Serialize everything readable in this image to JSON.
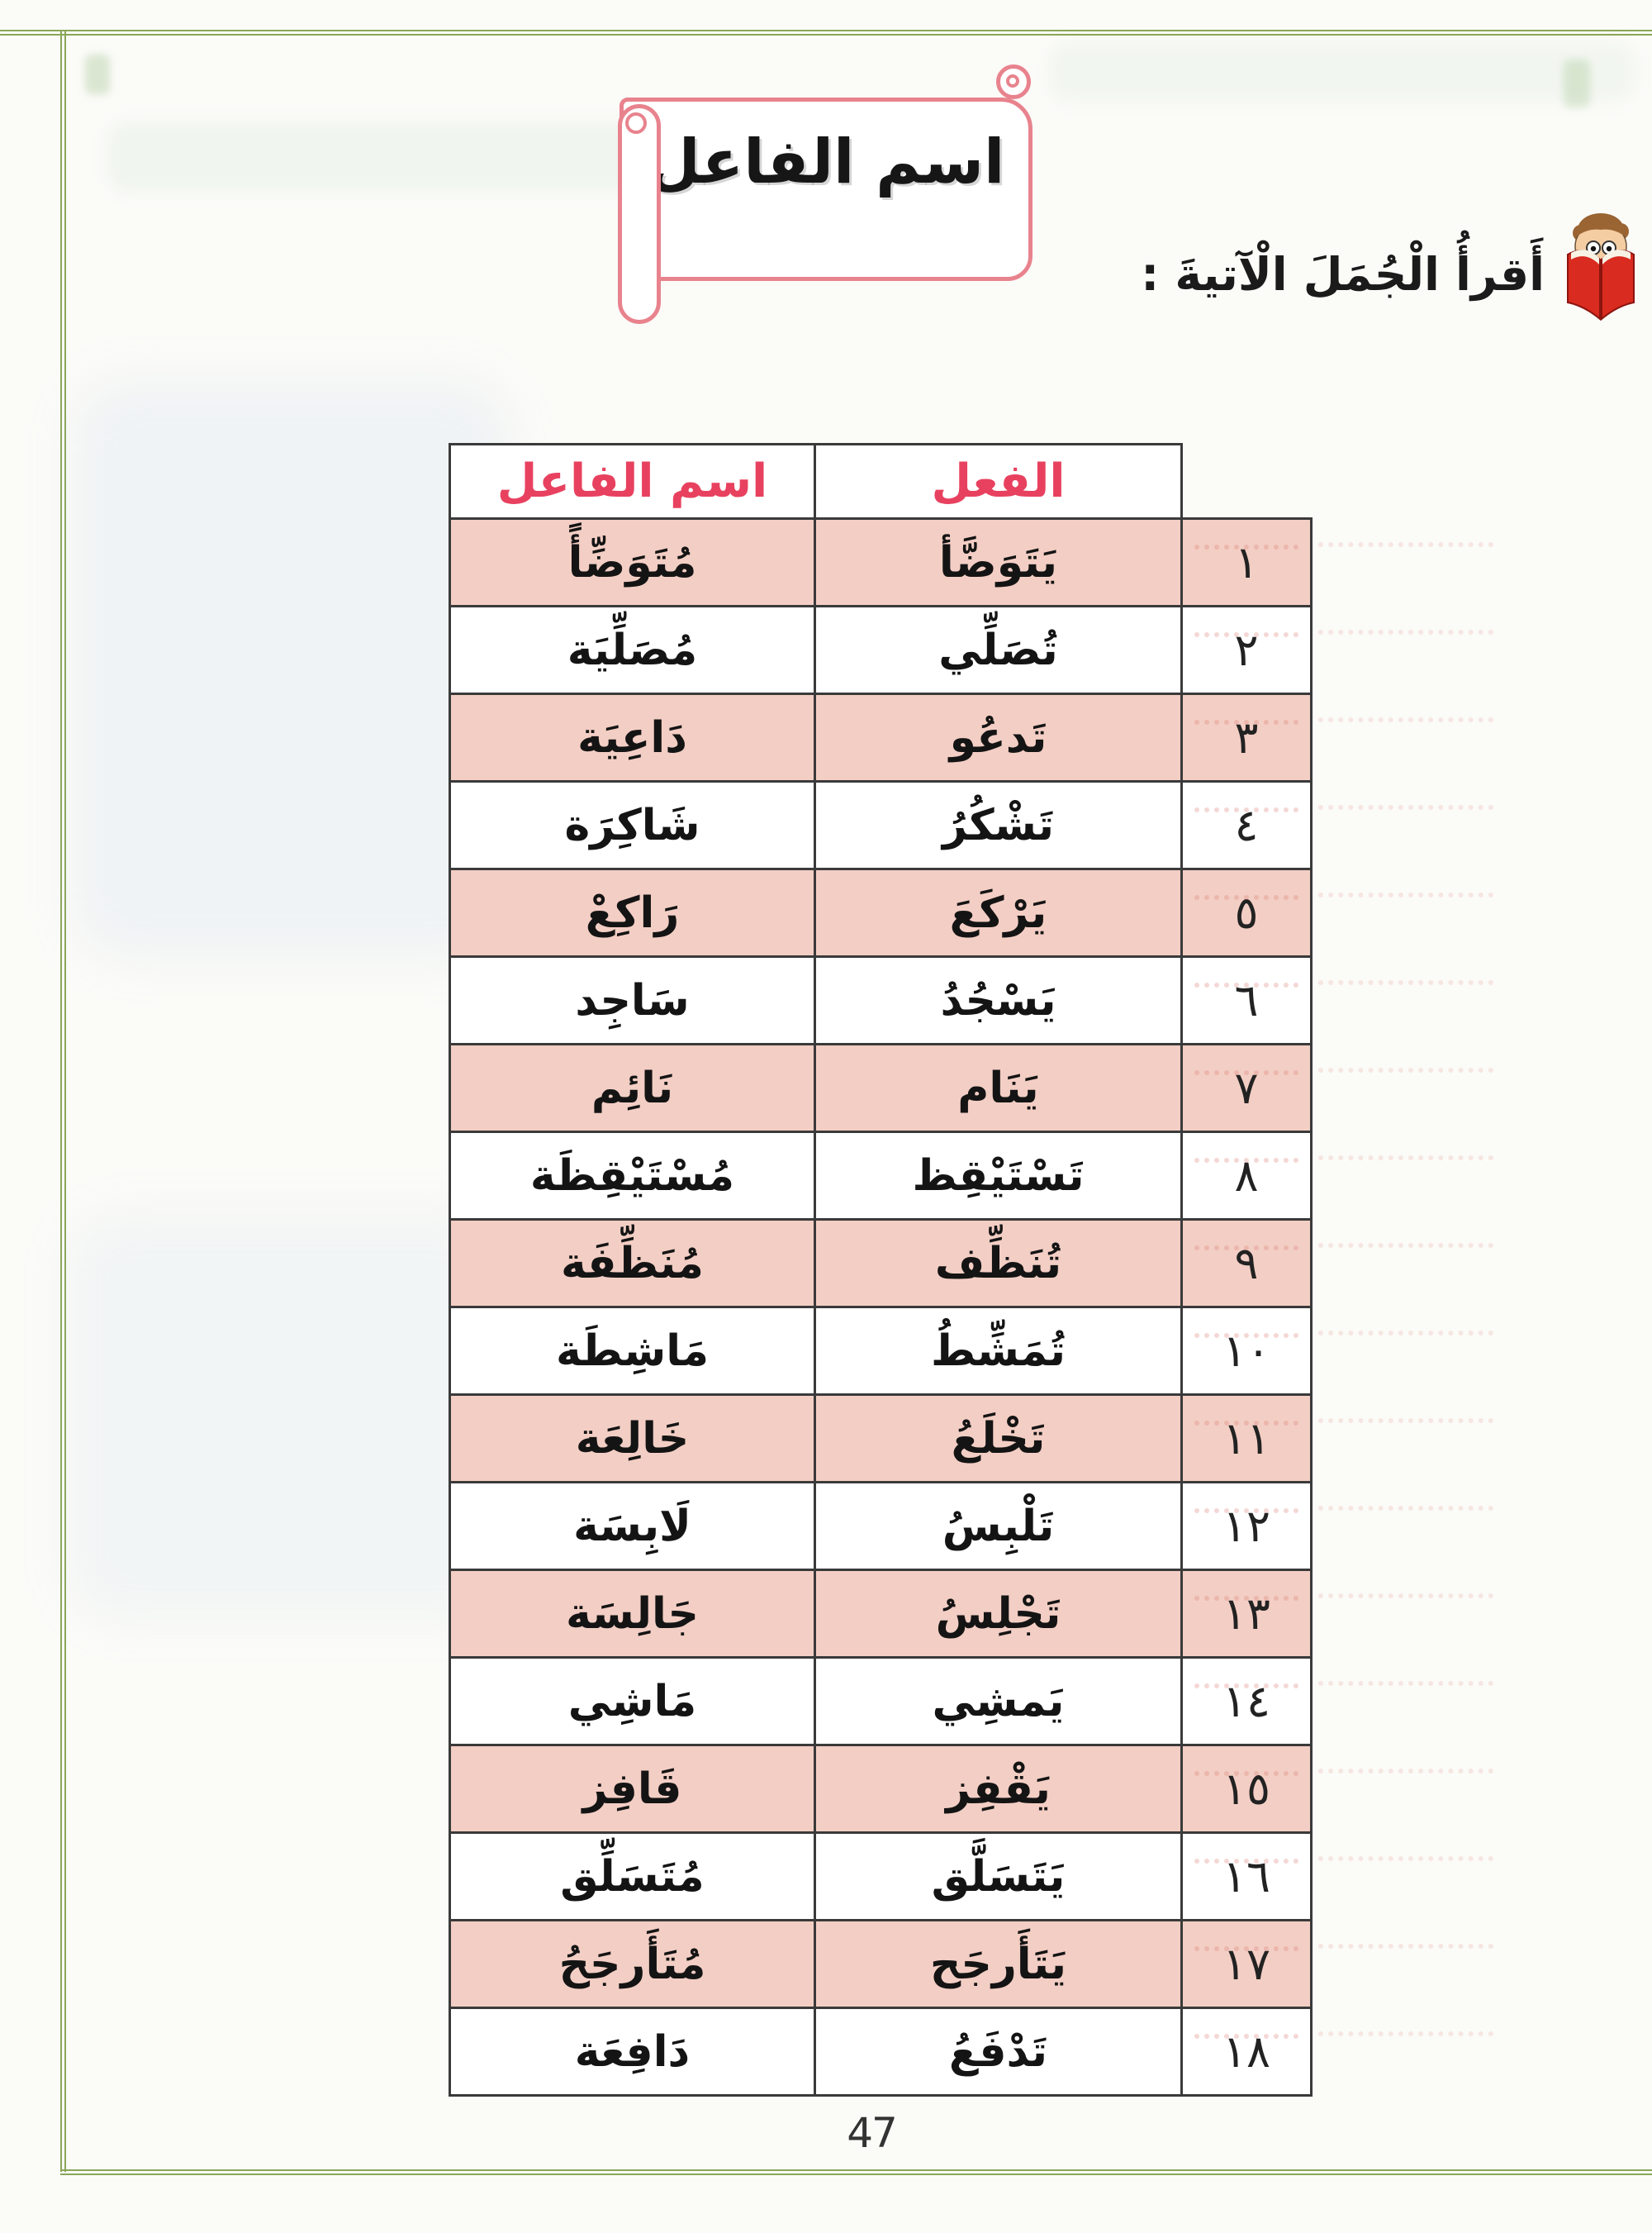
{
  "page": {
    "banner_title": "اسم الفاعل",
    "instruction": "أَقرأُ الْجُمَلَ الْآتيةَ :",
    "page_number": "47"
  },
  "table": {
    "headers": {
      "verb": "الفعل",
      "participle": "اسم الفاعل"
    },
    "rows": [
      {
        "num": "١",
        "verb": "يَتَوَضَّأ",
        "participle": "مُتَوَضِّأً",
        "highlighted": true
      },
      {
        "num": "٢",
        "verb": "تُصَلِّي",
        "participle": "مُصَلِّيَة",
        "highlighted": false
      },
      {
        "num": "٣",
        "verb": "تَدعُو",
        "participle": "دَاعِيَة",
        "highlighted": true
      },
      {
        "num": "٤",
        "verb": "تَشْكُرُ",
        "participle": "شَاكِرَة",
        "highlighted": false
      },
      {
        "num": "٥",
        "verb": "يَرْكَعَ",
        "participle": "رَاكِعْ",
        "highlighted": true
      },
      {
        "num": "٦",
        "verb": "يَسْجُدُ",
        "participle": "سَاجِد",
        "highlighted": false
      },
      {
        "num": "٧",
        "verb": "يَنَام",
        "participle": "نَائِم",
        "highlighted": true
      },
      {
        "num": "٨",
        "verb": "تَسْتَيْقِظ",
        "participle": "مُسْتَيْقِظَة",
        "highlighted": false
      },
      {
        "num": "٩",
        "verb": "تُنَظِّف",
        "participle": "مُنَظِّفَة",
        "highlighted": true
      },
      {
        "num": "١٠",
        "verb": "تُمَشِّطُ",
        "participle": "مَاشِطَة",
        "highlighted": false
      },
      {
        "num": "١١",
        "verb": "تَخْلَعُ",
        "participle": "خَالِعَة",
        "highlighted": true
      },
      {
        "num": "١٢",
        "verb": "تَلْبِسُ",
        "participle": "لَابِسَة",
        "highlighted": false
      },
      {
        "num": "١٣",
        "verb": "تَجْلِسُ",
        "participle": "جَالِسَة",
        "highlighted": true
      },
      {
        "num": "١٤",
        "verb": "يَمشِي",
        "participle": "مَاشِي",
        "highlighted": false
      },
      {
        "num": "١٥",
        "verb": "يَقْفِز",
        "participle": "قَافِز",
        "highlighted": true
      },
      {
        "num": "١٦",
        "verb": "يَتَسَلَّق",
        "participle": "مُتَسَلِّق",
        "highlighted": false
      },
      {
        "num": "١٧",
        "verb": "يَتَأَرجَح",
        "participle": "مُتَأَرجَحُ",
        "highlighted": true
      },
      {
        "num": "١٨",
        "verb": "تَدْفَعُ",
        "participle": "دَافِعَة",
        "highlighted": false
      }
    ]
  },
  "icons": {
    "reading_boy": "boy-reading-red-book-icon"
  },
  "colors": {
    "header_text": "#e8415f",
    "row_highlight": "#f3cec4",
    "scroll_border": "#e8838e",
    "frame_green": "#8aa658",
    "book_red": "#d92b1f",
    "table_border": "#3a3a3a"
  }
}
